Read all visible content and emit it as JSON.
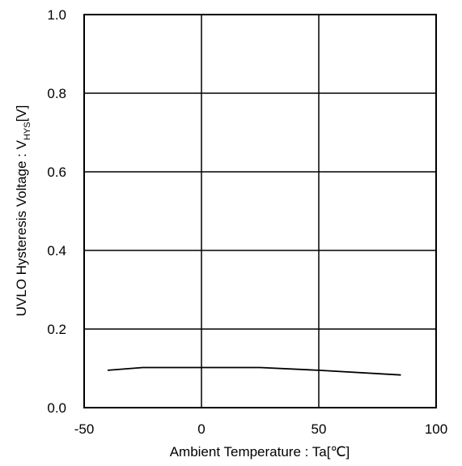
{
  "chart_data": {
    "type": "line",
    "title": "",
    "xlabel": "Ambient Temperature : Ta[℃]",
    "ylabel": {
      "main": "UVLO Hysteresis Voltage : V",
      "subscript": "HYS",
      "unit": "[V]"
    },
    "xlim": [
      -50,
      100
    ],
    "ylim": [
      0,
      1.0
    ],
    "x_ticks": [
      -50,
      0,
      50,
      100
    ],
    "x_tick_labels": [
      "-50",
      "0",
      "50",
      "100"
    ],
    "y_ticks": [
      0,
      0.2,
      0.4,
      0.6,
      0.8,
      1.0
    ],
    "y_tick_labels": [
      "0.0",
      "0.2",
      "0.4",
      "0.6",
      "0.8",
      "1.0"
    ],
    "grid": true,
    "line_color": "#000000",
    "series": [
      {
        "x": [
          -40,
          -25,
          0,
          25,
          50,
          85
        ],
        "y": [
          0.095,
          0.102,
          0.102,
          0.102,
          0.095,
          0.083
        ]
      }
    ]
  }
}
